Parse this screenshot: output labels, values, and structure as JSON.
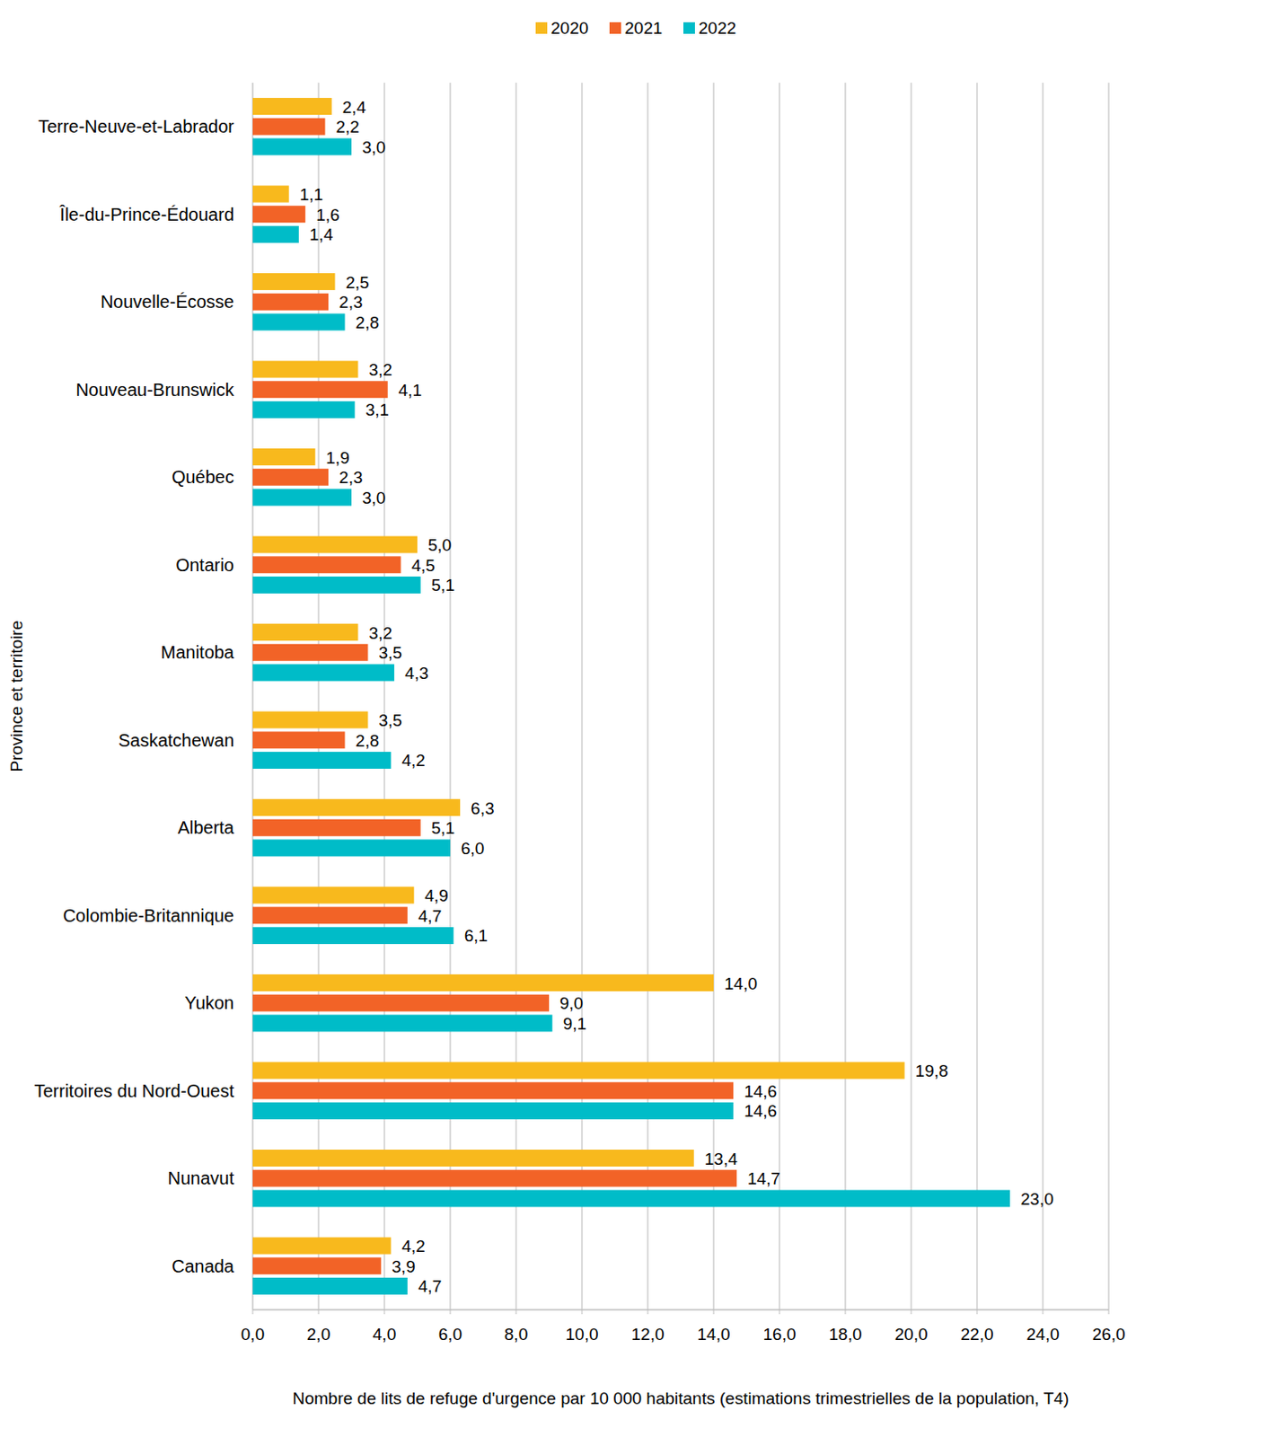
{
  "chart_data": {
    "type": "bar",
    "orientation": "horizontal",
    "data_labels": true,
    "grid": true,
    "legend": "top",
    "x_label": "Nombre de lits de refuge d'urgence par 10 000 habitants (estimations trimestrielles de la population, T4)",
    "y_label": "Province et territoire",
    "categories": [
      "Terre-Neuve-et-Labrador",
      "Île-du-Prince-Édouard",
      "Nouvelle-Écosse",
      "Nouveau-Brunswick",
      "Québec",
      "Ontario",
      "Manitoba",
      "Saskatchewan",
      "Alberta",
      "Colombie-Britannique",
      "Yukon",
      "Territoires du Nord-Ouest",
      "Nunavut",
      "Canada"
    ],
    "series": [
      {
        "name": "2020",
        "color": "#f8b91d",
        "values": [
          2.4,
          1.1,
          2.5,
          3.2,
          1.9,
          5.0,
          3.2,
          3.5,
          6.3,
          4.9,
          14.0,
          19.8,
          13.4,
          4.2
        ],
        "value_labels": [
          "2,4",
          "1,1",
          "2,5",
          "3,2",
          "1,9",
          "5,0",
          "3,2",
          "3,5",
          "6,3",
          "4,9",
          "14,0",
          "19,8",
          "13,4",
          "4,2"
        ]
      },
      {
        "name": "2021",
        "color": "#f26327",
        "values": [
          2.2,
          1.6,
          2.3,
          4.1,
          2.3,
          4.5,
          3.5,
          2.8,
          5.1,
          4.7,
          9.0,
          14.6,
          14.7,
          3.9
        ],
        "value_labels": [
          "2,2",
          "1,6",
          "2,3",
          "4,1",
          "2,3",
          "4,5",
          "3,5",
          "2,8",
          "5,1",
          "4,7",
          "9,0",
          "14,6",
          "14,7",
          "3,9"
        ]
      },
      {
        "name": "2022",
        "color": "#00bcc8",
        "values": [
          3.0,
          1.4,
          2.8,
          3.1,
          3.0,
          5.1,
          4.3,
          4.2,
          6.0,
          6.1,
          9.1,
          14.6,
          23.0,
          4.7
        ],
        "value_labels": [
          "3,0",
          "1,4",
          "2,8",
          "3,1",
          "3,0",
          "5,1",
          "4,3",
          "4,2",
          "6,0",
          "6,1",
          "9,1",
          "14,6",
          "23,0",
          "4,7"
        ]
      }
    ],
    "xlim": [
      0,
      26
    ],
    "xticks": [
      {
        "value": 0,
        "label": "0,0"
      },
      {
        "value": 2,
        "label": "2,0"
      },
      {
        "value": 4,
        "label": "4,0"
      },
      {
        "value": 6,
        "label": "6,0"
      },
      {
        "value": 8,
        "label": "8,0"
      },
      {
        "value": 10,
        "label": "10,0"
      },
      {
        "value": 12,
        "label": "12,0"
      },
      {
        "value": 14,
        "label": "14,0"
      },
      {
        "value": 16,
        "label": "16,0"
      },
      {
        "value": 18,
        "label": "18,0"
      },
      {
        "value": 20,
        "label": "20,0"
      },
      {
        "value": 22,
        "label": "22,0"
      },
      {
        "value": 24,
        "label": "24,0"
      },
      {
        "value": 26,
        "label": "26,0"
      }
    ]
  }
}
